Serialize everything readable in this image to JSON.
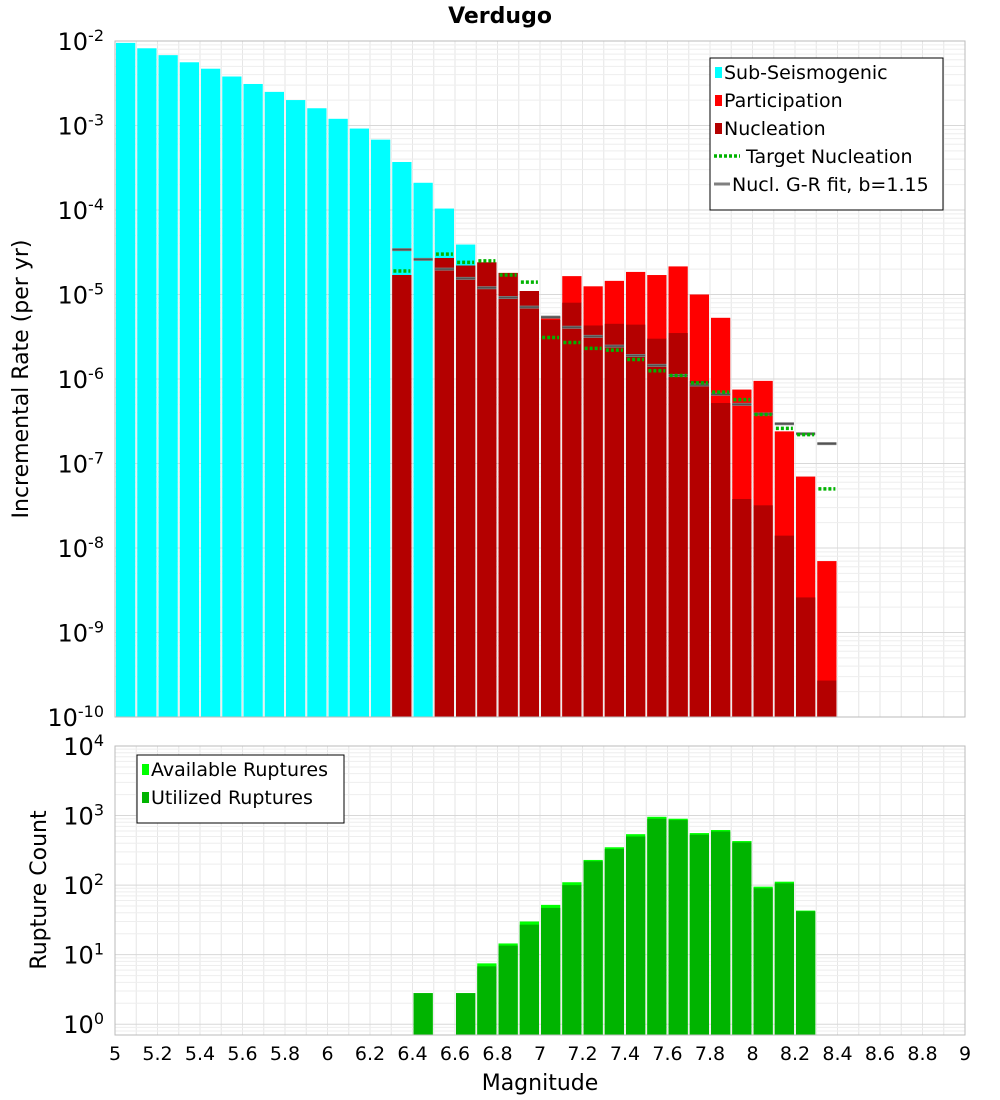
{
  "chart_data": [
    {
      "type": "bar",
      "title": "Verdugo",
      "ylabel": "Incremental Rate (per yr)",
      "xlabel": "",
      "yscale": "log",
      "xlim": [
        5,
        9
      ],
      "ylim": [
        1e-10,
        0.01
      ],
      "grid": true,
      "legend_position": "top-right",
      "y_tick_labels": [
        {
          "base": "10",
          "exp": "-10",
          "value": 1e-10
        },
        {
          "base": "10",
          "exp": "-9",
          "value": 1e-09
        },
        {
          "base": "10",
          "exp": "-8",
          "value": 1e-08
        },
        {
          "base": "10",
          "exp": "-7",
          "value": 1e-07
        },
        {
          "base": "10",
          "exp": "-6",
          "value": 1e-06
        },
        {
          "base": "10",
          "exp": "-5",
          "value": 1e-05
        },
        {
          "base": "10",
          "exp": "-4",
          "value": 0.0001
        },
        {
          "base": "10",
          "exp": "-3",
          "value": 0.001
        },
        {
          "base": "10",
          "exp": "-2",
          "value": 0.01
        }
      ],
      "legend": [
        {
          "label": "Sub-Seismogenic",
          "kind": "box",
          "color": "#00ffff"
        },
        {
          "label": "Participation",
          "kind": "box",
          "color": "#ff0000"
        },
        {
          "label": "Nucleation",
          "kind": "box",
          "color": "#b40000"
        },
        {
          "label": "Target Nucleation",
          "kind": "dotted",
          "color": "#00b400"
        },
        {
          "label": "Nucl. G-R fit, b=1.15",
          "kind": "line",
          "color": "#808080"
        }
      ],
      "series": [
        {
          "name": "Sub-Seismogenic",
          "color": "#00ffff",
          "x": [
            5.05,
            5.15,
            5.25,
            5.35,
            5.45,
            5.55,
            5.65,
            5.75,
            5.85,
            5.95,
            6.05,
            6.15,
            6.25,
            6.35,
            6.45,
            6.55,
            6.65
          ],
          "values": [
            0.0095,
            0.0082,
            0.0068,
            0.0056,
            0.0047,
            0.0038,
            0.0031,
            0.0025,
            0.002,
            0.0016,
            0.0012,
            0.00092,
            0.00068,
            0.00037,
            0.00021,
            0.000104,
            3.9e-05
          ]
        },
        {
          "name": "Participation",
          "color": "#ff0000",
          "x": [
            6.35,
            6.55,
            6.65,
            6.75,
            6.85,
            6.95,
            7.05,
            7.15,
            7.25,
            7.35,
            7.45,
            7.55,
            7.65,
            7.75,
            7.85,
            7.95,
            8.05,
            8.15,
            8.25,
            8.35
          ],
          "values": [
            1.7e-05,
            2.7e-05,
            2.2e-05,
            2.4e-05,
            1.8e-05,
            1.1e-05,
            5.5e-06,
            1.65e-05,
            1.25e-05,
            1.45e-05,
            1.85e-05,
            1.7e-05,
            2.15e-05,
            1e-05,
            5.3e-06,
            7.5e-07,
            9.5e-07,
            2.4e-07,
            7e-08,
            7e-09
          ]
        },
        {
          "name": "Nucleation",
          "color": "#b40000",
          "x": [
            6.35,
            6.55,
            6.65,
            6.75,
            6.85,
            6.95,
            7.05,
            7.15,
            7.25,
            7.35,
            7.45,
            7.55,
            7.65,
            7.75,
            7.85,
            7.95,
            8.05,
            8.15,
            8.25,
            8.35
          ],
          "values": [
            1.7e-05,
            2.7e-05,
            2.2e-05,
            2.4e-05,
            1.8e-05,
            1.1e-05,
            5e-06,
            8e-06,
            4.3e-06,
            4.5e-06,
            4.4e-06,
            3e-06,
            3.5e-06,
            9.5e-07,
            5.2e-07,
            3.8e-08,
            3.2e-08,
            1.4e-08,
            2.6e-09,
            2.7e-10
          ]
        },
        {
          "name": "Target Nucleation",
          "color": "#00b400",
          "x": [
            6.35,
            6.55,
            6.65,
            6.75,
            6.85,
            6.95,
            7.05,
            7.15,
            7.25,
            7.35,
            7.45,
            7.55,
            7.65,
            7.75,
            7.85,
            7.95,
            8.05,
            8.15,
            8.25,
            8.35
          ],
          "values": [
            1.9e-05,
            3e-05,
            2.4e-05,
            2.5e-05,
            1.7e-05,
            1.4e-05,
            3.1e-06,
            2.7e-06,
            2.3e-06,
            2.2e-06,
            1.7e-06,
            1.25e-06,
            1.1e-06,
            9e-07,
            7e-07,
            5.7e-07,
            3.8e-07,
            2.6e-07,
            2.2e-07,
            5e-08
          ]
        },
        {
          "name": "Nucl. G-R fit, b=1.15",
          "color": "#808080",
          "x": [
            6.35,
            6.45,
            6.55,
            6.65,
            6.75,
            6.85,
            6.95,
            7.05,
            7.15,
            7.25,
            7.35,
            7.45,
            7.55,
            7.65,
            7.75,
            7.85,
            7.95,
            8.05,
            8.15,
            8.25,
            8.35
          ],
          "values": [
            3.4e-05,
            2.6e-05,
            2e-05,
            1.55e-05,
            1.2e-05,
            9.2e-06,
            7.1e-06,
            5.4e-06,
            4.1e-06,
            3.2e-06,
            2.45e-06,
            1.9e-06,
            1.45e-06,
            1.1e-06,
            8.5e-07,
            6.6e-07,
            5e-07,
            3.85e-07,
            2.95e-07,
            2.25e-07,
            1.72e-07
          ]
        }
      ]
    },
    {
      "type": "bar",
      "title": "",
      "ylabel": "Rupture Count",
      "xlabel": "Magnitude",
      "yscale": "log",
      "xlim": [
        5,
        9
      ],
      "ylim": [
        0.7,
        10000
      ],
      "grid": true,
      "legend_position": "top-left",
      "x_tick_labels": [
        "5",
        "5.2",
        "5.4",
        "5.6",
        "5.8",
        "6",
        "6.2",
        "6.4",
        "6.6",
        "6.8",
        "7",
        "7.2",
        "7.4",
        "7.6",
        "7.8",
        "8",
        "8.2",
        "8.4",
        "8.6",
        "8.8",
        "9"
      ],
      "y_tick_labels": [
        {
          "base": "10",
          "exp": "0",
          "value": 1
        },
        {
          "base": "10",
          "exp": "1",
          "value": 10
        },
        {
          "base": "10",
          "exp": "2",
          "value": 100
        },
        {
          "base": "10",
          "exp": "3",
          "value": 1000
        },
        {
          "base": "10",
          "exp": "4",
          "value": 10000
        }
      ],
      "legend": [
        {
          "label": "Available Ruptures",
          "kind": "box",
          "color": "#00ff00"
        },
        {
          "label": "Utilized Ruptures",
          "kind": "box",
          "color": "#00b400"
        }
      ],
      "series": [
        {
          "name": "Available Ruptures",
          "color": "#00ff00",
          "x": [
            6.45,
            6.65,
            6.75,
            6.85,
            6.95,
            7.05,
            7.15,
            7.25,
            7.35,
            7.45,
            7.55,
            7.65,
            7.75,
            7.85,
            7.95,
            8.05,
            8.15,
            8.25
          ],
          "values": [
            2.8,
            2.8,
            7.5,
            14.5,
            30,
            52,
            110,
            230,
            350,
            540,
            960,
            900,
            560,
            620,
            430,
            95,
            112,
            43
          ]
        },
        {
          "name": "Utilized Ruptures",
          "color": "#00b400",
          "x": [
            6.45,
            6.65,
            6.75,
            6.85,
            6.95,
            7.05,
            7.15,
            7.25,
            7.35,
            7.45,
            7.55,
            7.65,
            7.75,
            7.85,
            7.95,
            8.05,
            8.15,
            8.25
          ],
          "values": [
            2.8,
            2.8,
            6.8,
            13.5,
            27,
            47,
            100,
            220,
            330,
            500,
            900,
            860,
            530,
            590,
            410,
            90,
            106,
            42
          ]
        }
      ]
    }
  ]
}
